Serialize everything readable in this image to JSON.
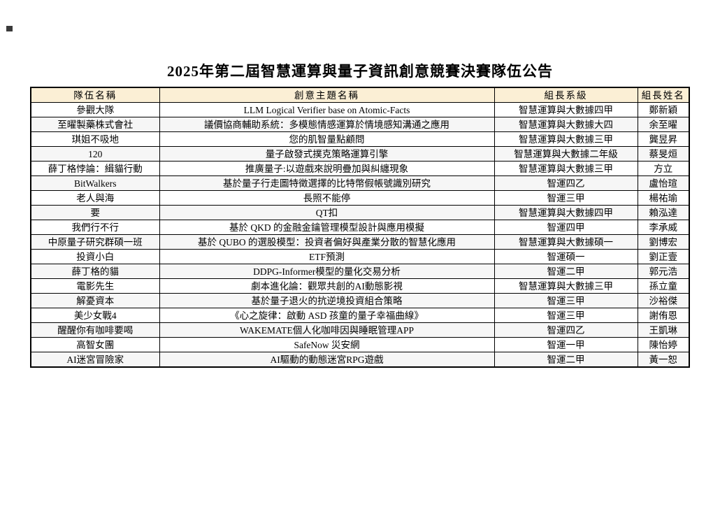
{
  "page": {
    "title": "2025年第二屆智慧運算與量子資訊創意競賽決賽隊伍公告"
  },
  "colors": {
    "header_bg": "#FBEFD5",
    "row_stripe_bg": "#F6F6F6",
    "border": "#000000"
  },
  "table": {
    "headers": [
      "隊伍名稱",
      "創意主題名稱",
      "組長系級",
      "組長姓名"
    ],
    "rows": [
      {
        "team": "參觀大隊",
        "topic": "LLM Logical Verifier base on Atomic-Facts",
        "dept": "智慧運算與大數據四甲",
        "leader": "鄭新穎"
      },
      {
        "team": "至曜製藥株式會社",
        "topic": "議價協商輔助系統：多模態情感運算於情境感知溝通之應用",
        "dept": "智慧運算與大數據大四",
        "leader": "余至曜"
      },
      {
        "team": "琪姐不吸地",
        "topic": "您的肌智量點顧問",
        "dept": "智慧運算與大數據三甲",
        "leader": "龔昱昇"
      },
      {
        "team": "120",
        "topic": "量子啟發式撲克策略運算引擎",
        "dept": "智慧運算與大數據二年級",
        "leader": "蔡旻烜"
      },
      {
        "team": "薛丁格悖論：緝貓行動",
        "topic": "推廣量子:以遊戲來說明疊加與糾纏現象",
        "dept": "智慧運算與大數據三甲",
        "leader": "方立"
      },
      {
        "team": "BitWalkers",
        "topic": "基於量子行走圖特徵選擇的比特幣假帳號識別研究",
        "dept": "智運四乙",
        "leader": "盧怡瑄"
      },
      {
        "team": "老人與海",
        "topic": "長照不能停",
        "dept": "智運三甲",
        "leader": "楊祐瑜"
      },
      {
        "team": "要",
        "topic": "QT扣",
        "dept": "智慧運算與大數據四甲",
        "leader": "賴泓達"
      },
      {
        "team": "我們行不行",
        "topic": "基於 QKD 的金融金鑰管理模型設計與應用模擬",
        "dept": "智運四甲",
        "leader": "李承威"
      },
      {
        "team": "中原量子研究群碩一班",
        "topic": "基於 QUBO 的選股模型：投資者偏好與產業分散的智慧化應用",
        "dept": "智慧運算與大數據碩一",
        "leader": "劉博宏"
      },
      {
        "team": "投資小白",
        "topic": "ETF預測",
        "dept": "智運碩一",
        "leader": "劉正壹"
      },
      {
        "team": "薛丁格的貓",
        "topic": "DDPG-Informer模型的量化交易分析",
        "dept": "智運二甲",
        "leader": "郭元浩"
      },
      {
        "team": "電影先生",
        "topic": "劇本進化論：觀眾共創的AI動態影視",
        "dept": "智慧運算與大數據三甲",
        "leader": "孫立童"
      },
      {
        "team": "解憂資本",
        "topic": "基於量子退火的抗逆境投資組合策略",
        "dept": "智運三甲",
        "leader": "沙裕傑"
      },
      {
        "team": "美少女戰4",
        "topic": "《心之旋律：啟動 ASD 孩童的量子幸福曲線》",
        "dept": "智運三甲",
        "leader": "謝侑恩"
      },
      {
        "team": "醒醒你有咖啡要喝",
        "topic": "WAKEMATE個人化咖啡因與睡眠管理APP",
        "dept": "智運四乙",
        "leader": "王凱琳"
      },
      {
        "team": "高智女團",
        "topic": "SafeNow 災安網",
        "dept": "智運一甲",
        "leader": "陳怡婷"
      },
      {
        "team": "AI迷宮冒險家",
        "topic": "AI驅動的動態迷宮RPG遊戲",
        "dept": "智運二甲",
        "leader": "黃一恕"
      }
    ]
  }
}
